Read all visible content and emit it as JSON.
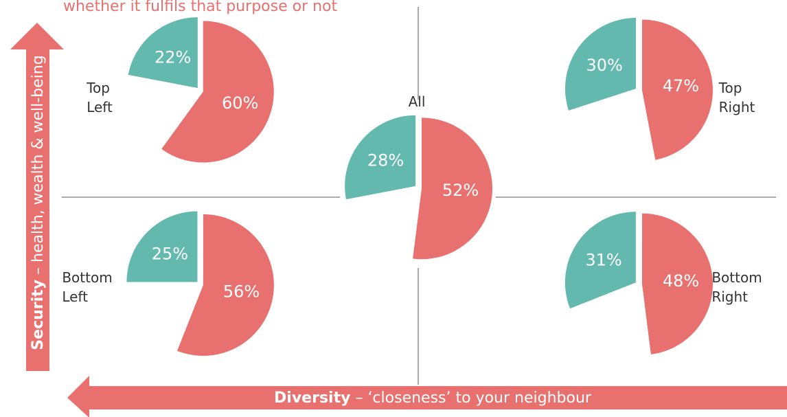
{
  "subtitle": "whether it fulfils that purpose or not",
  "y_axis_label": {
    "bold": "Security",
    "rest": " – health, wealth & well-being"
  },
  "x_axis_label": {
    "bold": "Diversity",
    "rest": " – ‘closeness’ to your neighbour"
  },
  "chart_data": [
    {
      "type": "pie",
      "title": "Top Left",
      "values": [
        60,
        22
      ],
      "value_labels": [
        "60%",
        "22%"
      ],
      "colors": [
        "#e8716f",
        "#63b9ae"
      ]
    },
    {
      "type": "pie",
      "title": "Top Right",
      "values": [
        47,
        30
      ],
      "value_labels": [
        "47%",
        "30%"
      ],
      "colors": [
        "#e8716f",
        "#63b9ae"
      ]
    },
    {
      "type": "pie",
      "title": "All",
      "values": [
        52,
        28
      ],
      "value_labels": [
        "52%",
        "28%"
      ],
      "colors": [
        "#e8716f",
        "#63b9ae"
      ]
    },
    {
      "type": "pie",
      "title": "Bottom Left",
      "values": [
        56,
        25
      ],
      "value_labels": [
        "56%",
        "25%"
      ],
      "colors": [
        "#e8716f",
        "#63b9ae"
      ]
    },
    {
      "type": "pie",
      "title": "Bottom Right",
      "values": [
        48,
        31
      ],
      "value_labels": [
        "48%",
        "31%"
      ],
      "colors": [
        "#e8716f",
        "#63b9ae"
      ]
    }
  ]
}
